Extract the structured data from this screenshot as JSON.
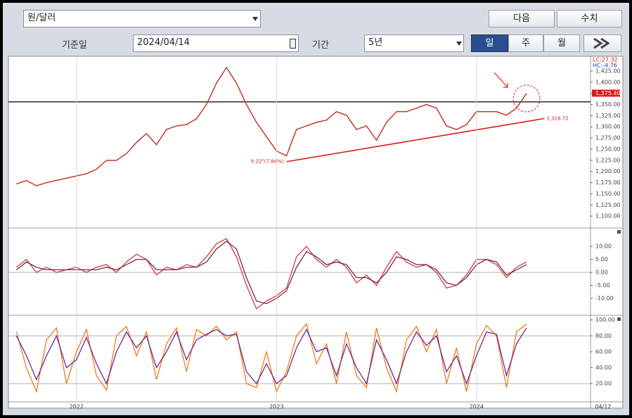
{
  "toolbar": {
    "currency": "원/달러",
    "next_button": "다음",
    "values_button": "수치",
    "base_date_label": "기준일",
    "base_date": "2024/04/14",
    "period_label": "기간",
    "period": "5년",
    "day_button": "일",
    "week_button": "주",
    "month_button": "월"
  },
  "chart_data": [
    {
      "type": "line",
      "x": [
        2021.7,
        2021.75,
        2021.8,
        2021.85,
        2021.9,
        2021.95,
        2022.0,
        2022.05,
        2022.1,
        2022.15,
        2022.2,
        2022.25,
        2022.3,
        2022.35,
        2022.4,
        2022.45,
        2022.5,
        2022.55,
        2022.6,
        2022.65,
        2022.7,
        2022.75,
        2022.8,
        2022.85,
        2022.9,
        2022.95,
        2023.0,
        2023.05,
        2023.1,
        2023.15,
        2023.2,
        2023.25,
        2023.3,
        2023.35,
        2023.4,
        2023.45,
        2023.5,
        2023.55,
        2023.6,
        2023.65,
        2023.7,
        2023.75,
        2023.8,
        2023.85,
        2023.9,
        2023.95,
        2024.0,
        2024.05,
        2024.1,
        2024.15,
        2024.2,
        2024.25
      ],
      "series": [
        {
          "color": "#c0392b",
          "values": [
            1172,
            1180,
            1168,
            1175,
            1180,
            1185,
            1190,
            1195,
            1205,
            1225,
            1225,
            1240,
            1265,
            1285,
            1260,
            1294,
            1302,
            1305,
            1318,
            1350,
            1398,
            1433,
            1398,
            1350,
            1310,
            1278,
            1246,
            1235,
            1294,
            1302,
            1310,
            1315,
            1334,
            1326,
            1294,
            1302,
            1270,
            1310,
            1334,
            1334,
            1342,
            1350,
            1342,
            1302,
            1294,
            1305,
            1334,
            1334,
            1334,
            1326,
            1342,
            1375
          ]
        }
      ],
      "xlim": [
        2021.66,
        2024.57
      ],
      "ylim": [
        1075,
        1458
      ],
      "yticks": [
        {
          "value": 1100,
          "label": "1,100.00"
        },
        {
          "value": 1125,
          "label": "1,125.00"
        },
        {
          "value": 1150,
          "label": "1,150.00"
        },
        {
          "value": 1175,
          "label": "1,175.00"
        },
        {
          "value": 1200,
          "label": "1,200.00"
        },
        {
          "value": 1225,
          "label": "1,225.00"
        },
        {
          "value": 1250,
          "label": "1,250.00"
        },
        {
          "value": 1275,
          "label": "1,275.00"
        },
        {
          "value": 1300,
          "label": "1,300.00"
        },
        {
          "value": 1325,
          "label": "1,325.00"
        },
        {
          "value": 1350,
          "label": "1,350.00"
        },
        {
          "value": 1375,
          "label": "1,375.00"
        },
        {
          "value": 1400,
          "label": "1,400.00"
        },
        {
          "value": 1425,
          "label": "1,425.00"
        }
      ],
      "lc_label": "LC:27.32",
      "hc_label": "HC:-4.76",
      "last_price": {
        "value": 1375.4,
        "label": "1,375.40"
      },
      "reference_line": 1356,
      "trendline": {
        "x": [
          2023.05,
          2024.34
        ],
        "values": [
          1222,
          1318.72
        ],
        "end_label": "1,318.72"
      },
      "low_label": "9.22°(7.84%)"
    },
    {
      "type": "line",
      "x": [
        2021.7,
        2021.75,
        2021.8,
        2021.85,
        2021.9,
        2021.95,
        2022.0,
        2022.05,
        2022.1,
        2022.15,
        2022.2,
        2022.25,
        2022.3,
        2022.35,
        2022.4,
        2022.45,
        2022.5,
        2022.55,
        2022.6,
        2022.65,
        2022.7,
        2022.75,
        2022.8,
        2022.85,
        2022.9,
        2022.95,
        2023.0,
        2023.05,
        2023.1,
        2023.15,
        2023.2,
        2023.25,
        2023.3,
        2023.35,
        2023.4,
        2023.45,
        2023.5,
        2023.55,
        2023.6,
        2023.65,
        2023.7,
        2023.75,
        2023.8,
        2023.85,
        2023.9,
        2023.95,
        2024.0,
        2024.05,
        2024.1,
        2024.15,
        2024.2,
        2024.25
      ],
      "series": [
        {
          "color": "#d63a3a",
          "values": [
            2,
            5,
            0,
            2,
            0,
            1,
            2,
            0,
            2,
            3,
            0,
            4,
            7,
            5,
            -1,
            2,
            1,
            3,
            2,
            6,
            11,
            13,
            6,
            -5,
            -14,
            -11,
            -9,
            -6,
            6,
            10,
            5,
            2,
            5,
            2,
            -4,
            -1,
            -5,
            2,
            8,
            4,
            2,
            3,
            0,
            -6,
            -5,
            -1,
            5,
            5,
            3,
            -2,
            2,
            4
          ]
        },
        {
          "color": "#7a2a4a",
          "values": [
            1,
            4,
            2,
            1,
            1,
            1,
            1,
            1,
            1,
            2,
            1,
            3,
            5,
            5,
            1,
            1,
            1,
            2,
            2,
            4,
            9,
            12,
            9,
            -2,
            -11,
            -12,
            -10,
            -7,
            2,
            8,
            6,
            3,
            4,
            3,
            -2,
            -2,
            -4,
            0,
            6,
            5,
            3,
            3,
            1,
            -4,
            -5,
            -2,
            3,
            5,
            4,
            -1,
            1,
            3
          ]
        }
      ],
      "xlim": [
        2021.66,
        2024.57
      ],
      "ylim": [
        -16.2,
        16.8
      ],
      "yticks": [
        {
          "value": 10,
          "label": "10.00"
        },
        {
          "value": 5,
          "label": "5.00"
        },
        {
          "value": 0,
          "label": "0.00"
        },
        {
          "value": -5,
          "label": "-5.00"
        },
        {
          "value": -10,
          "label": "-10.00"
        }
      ],
      "hlines": [
        0
      ]
    },
    {
      "type": "line",
      "x": [
        2021.7,
        2021.75,
        2021.8,
        2021.85,
        2021.9,
        2021.95,
        2022.0,
        2022.05,
        2022.1,
        2022.15,
        2022.2,
        2022.25,
        2022.3,
        2022.35,
        2022.4,
        2022.45,
        2022.5,
        2022.55,
        2022.6,
        2022.65,
        2022.7,
        2022.75,
        2022.8,
        2022.85,
        2022.9,
        2022.95,
        2023.0,
        2023.05,
        2023.1,
        2023.15,
        2023.2,
        2023.25,
        2023.3,
        2023.35,
        2023.4,
        2023.45,
        2023.5,
        2023.55,
        2023.6,
        2023.65,
        2023.7,
        2023.75,
        2023.8,
        2023.85,
        2023.9,
        2023.95,
        2024.0,
        2024.05,
        2024.1,
        2024.15,
        2024.2,
        2024.25
      ],
      "series": [
        {
          "color": "#f07a1a",
          "values": [
            85,
            40,
            10,
            75,
            90,
            20,
            60,
            88,
            30,
            12,
            80,
            92,
            55,
            85,
            25,
            70,
            90,
            35,
            88,
            80,
            92,
            75,
            85,
            20,
            15,
            60,
            10,
            35,
            80,
            95,
            45,
            70,
            20,
            85,
            30,
            15,
            90,
            40,
            10,
            75,
            92,
            60,
            88,
            20,
            65,
            10,
            70,
            93,
            80,
            15,
            85,
            95
          ]
        },
        {
          "color": "#6a2a9a",
          "values": [
            80,
            55,
            25,
            55,
            80,
            40,
            50,
            78,
            45,
            20,
            60,
            85,
            65,
            80,
            40,
            60,
            85,
            50,
            75,
            82,
            88,
            80,
            82,
            35,
            20,
            45,
            20,
            30,
            65,
            88,
            60,
            65,
            30,
            70,
            40,
            20,
            75,
            50,
            20,
            60,
            85,
            68,
            80,
            35,
            55,
            20,
            55,
            85,
            82,
            30,
            70,
            90
          ]
        }
      ],
      "xlim": [
        2021.66,
        2024.57
      ],
      "ylim": [
        -2,
        105
      ],
      "yticks": [
        {
          "value": 100,
          "label": "100.00"
        },
        {
          "value": 80,
          "label": "80.00"
        },
        {
          "value": 60,
          "label": "60.00"
        },
        {
          "value": 40,
          "label": "40.00"
        },
        {
          "value": 20,
          "label": "20.00"
        }
      ],
      "hlines": [
        80,
        20
      ],
      "xticks": [
        {
          "value": 2022,
          "label": "2022"
        },
        {
          "value": 2023,
          "label": "2023"
        },
        {
          "value": 2024,
          "label": "2024"
        }
      ],
      "last_date_label": "04/12"
    }
  ]
}
